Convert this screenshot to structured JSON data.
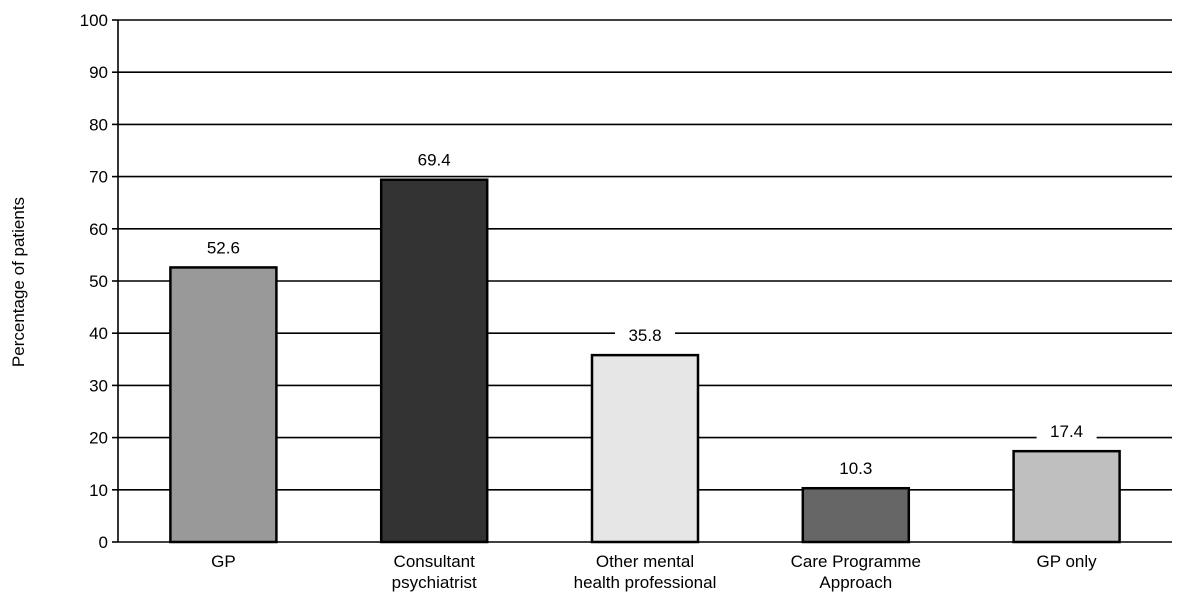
{
  "chart_data": {
    "type": "bar",
    "ylabel": "Percentage of patients",
    "xlabel": "",
    "ylim": [
      0,
      100
    ],
    "yticks": [
      0,
      10,
      20,
      30,
      40,
      50,
      60,
      70,
      80,
      90,
      100
    ],
    "grid": true,
    "categories": [
      [
        "GP"
      ],
      [
        "Consultant",
        "psychiatrist"
      ],
      [
        "Other mental",
        "health professional"
      ],
      [
        "Care Programme",
        "Approach"
      ],
      [
        "GP only"
      ]
    ],
    "values": [
      52.6,
      69.4,
      35.8,
      10.3,
      17.4
    ],
    "value_labels": [
      "52.6",
      "69.4",
      "35.8",
      "10.3",
      "17.4"
    ],
    "bar_colors": [
      "#999999",
      "#333333",
      "#e6e6e6",
      "#666666",
      "#bfbfbf"
    ]
  }
}
